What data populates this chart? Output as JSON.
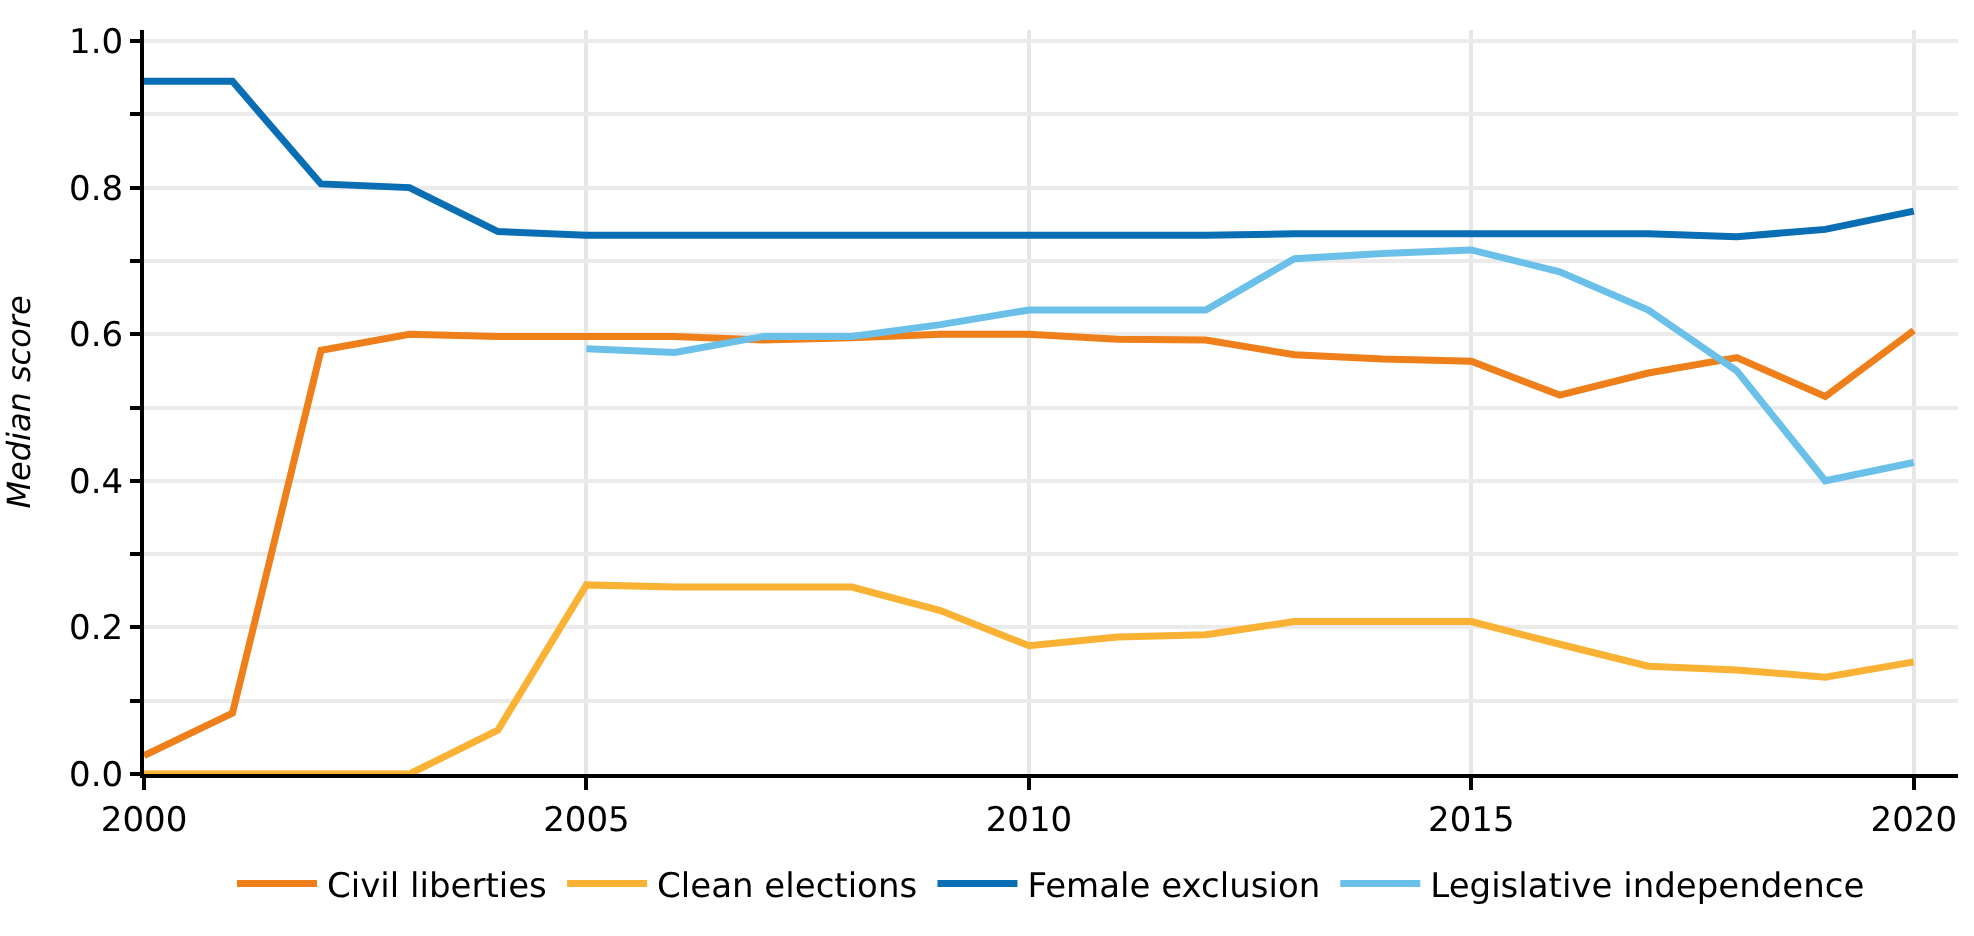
{
  "chart_data": {
    "type": "line",
    "ylabel": "Median score",
    "x": [
      2000,
      2001,
      2002,
      2003,
      2004,
      2005,
      2006,
      2007,
      2008,
      2009,
      2010,
      2011,
      2012,
      2013,
      2014,
      2015,
      2016,
      2017,
      2018,
      2019,
      2020
    ],
    "series": [
      {
        "name": "Civil liberties",
        "color": "#ee7f1a",
        "values": [
          0.025,
          0.083,
          0.578,
          0.6,
          0.597,
          0.597,
          0.597,
          0.592,
          0.595,
          0.6,
          0.6,
          0.593,
          0.592,
          0.572,
          0.566,
          0.563,
          0.517,
          0.547,
          0.568,
          0.515,
          0.605
        ]
      },
      {
        "name": "Clean elections",
        "color": "#f9b233",
        "values": [
          0,
          0,
          0,
          0,
          0.06,
          0.258,
          0.255,
          0.255,
          0.255,
          0.223,
          0.175,
          0.187,
          0.19,
          0.208,
          0.208,
          0.208,
          0.177,
          0.147,
          0.142,
          0.132,
          0.153
        ]
      },
      {
        "name": "Female exclusion",
        "color": "#0a6eb4",
        "values": [
          0.945,
          0.945,
          0.805,
          0.8,
          0.74,
          0.735,
          0.735,
          0.735,
          0.735,
          0.735,
          0.735,
          0.735,
          0.735,
          0.737,
          0.737,
          0.737,
          0.737,
          0.737,
          0.733,
          0.743,
          0.768
        ]
      },
      {
        "name": "Legislative independence",
        "color": "#6ac0e8",
        "values": [
          null,
          null,
          null,
          null,
          null,
          0.58,
          0.575,
          0.597,
          0.597,
          0.613,
          0.633,
          0.633,
          0.633,
          0.703,
          0.71,
          0.715,
          0.685,
          0.633,
          0.55,
          0.4,
          0.425
        ]
      }
    ],
    "xlim": [
      2000,
      2020.5
    ],
    "xticks": [
      2000,
      2005,
      2010,
      2015,
      2020
    ],
    "ylim": [
      0,
      1.015
    ],
    "yticks": [
      {
        "value": 0,
        "label": "0.0"
      },
      {
        "value": 0.1,
        "label": null
      },
      {
        "value": 0.2,
        "label": "0.2"
      },
      {
        "value": 0.3,
        "label": null
      },
      {
        "value": 0.4,
        "label": "0.4"
      },
      {
        "value": 0.5,
        "label": null
      },
      {
        "value": 0.6,
        "label": "0.6"
      },
      {
        "value": 0.7,
        "label": null
      },
      {
        "value": 0.8,
        "label": "0.8"
      },
      {
        "value": 0.9,
        "label": null
      },
      {
        "value": 1,
        "label": "1.0"
      }
    ],
    "grid": true,
    "legend": "bottom",
    "marker": "none",
    "line_style": "solid"
  }
}
